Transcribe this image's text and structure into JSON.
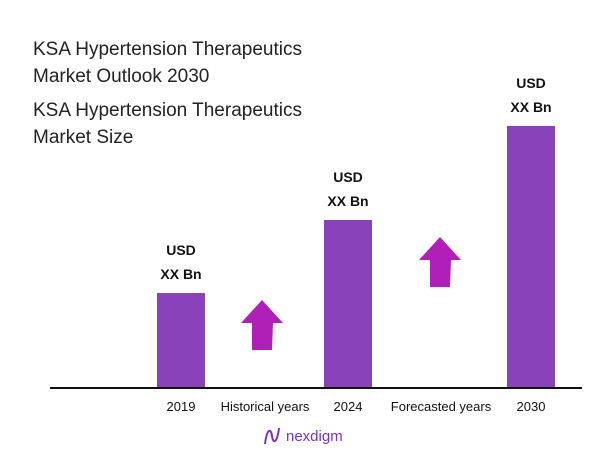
{
  "title": "KSA Hypertension Therapeutics Market Outlook 2030",
  "subtitle": "KSA Hypertension Therapeutics Market Size",
  "logo": "nexdigm",
  "colors": {
    "bar": "#8942b9",
    "arrow": "#b020b8"
  },
  "chart_data": {
    "type": "bar",
    "categories": [
      "2019",
      "2024",
      "2030"
    ],
    "values": [
      100,
      177,
      276
    ],
    "value_note": "relative heights; actual values not shown",
    "data_labels": [
      [
        "USD",
        "XX Bn"
      ],
      [
        "USD",
        "XX Bn"
      ],
      [
        "USD",
        "XX Bn"
      ]
    ],
    "annotations": [
      "Historical years",
      "Forecasted years"
    ],
    "ylim": [
      0,
      290
    ]
  }
}
